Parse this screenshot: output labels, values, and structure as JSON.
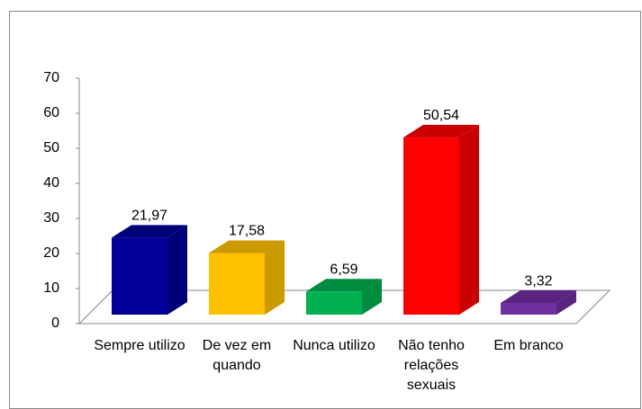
{
  "chart_data": {
    "type": "bar3d",
    "categories": [
      "Sempre utilizo",
      "De vez em quando",
      "Nunca utilizo",
      "Não tenho relações sexuais",
      "Em branco"
    ],
    "values": [
      21.97,
      17.58,
      6.59,
      50.54,
      3.32
    ],
    "value_labels": [
      "21,97",
      "17,58",
      "6,59",
      "50,54",
      "3,32"
    ],
    "colors": [
      "#000099",
      "#ffc000",
      "#00b050",
      "#ff0000",
      "#7030a0"
    ],
    "ylim": [
      0,
      70
    ],
    "yticks": [
      0,
      10,
      20,
      30,
      40,
      50,
      60,
      70
    ]
  }
}
